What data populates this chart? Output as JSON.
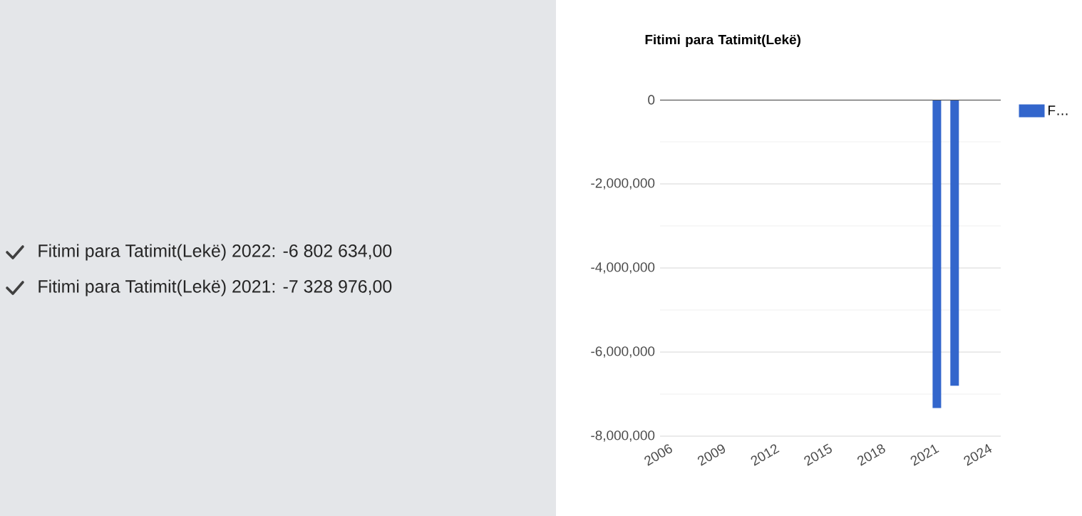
{
  "chart_data": {
    "type": "bar",
    "title": "Fitimi para Tatimit(Lekë)",
    "x": [
      2021,
      2022
    ],
    "series": [
      {
        "name": "F…",
        "color": "#3366cc",
        "values": [
          -7328976,
          -6802634
        ]
      }
    ],
    "xlim": [
      2005.4,
      2024.6
    ],
    "xticks": [
      2006,
      2009,
      2012,
      2015,
      2018,
      2021,
      2024
    ],
    "ylim": [
      -8000000,
      0
    ],
    "yticks": [
      {
        "value": -8000000,
        "label": "-8,000,000"
      },
      {
        "value": -6000000,
        "label": "-6,000,000"
      },
      {
        "value": -4000000,
        "label": "-4,000,000"
      },
      {
        "value": -2000000,
        "label": "-2,000,000"
      },
      0
    ],
    "grid": "y",
    "legend": "top right",
    "annotations": [
      "Fitimi para Tatimit(Lekë) 2022: -6 802 634,00",
      "Fitimi para Tatimit(Lekë) 2021: -7 328 976,00"
    ]
  }
}
